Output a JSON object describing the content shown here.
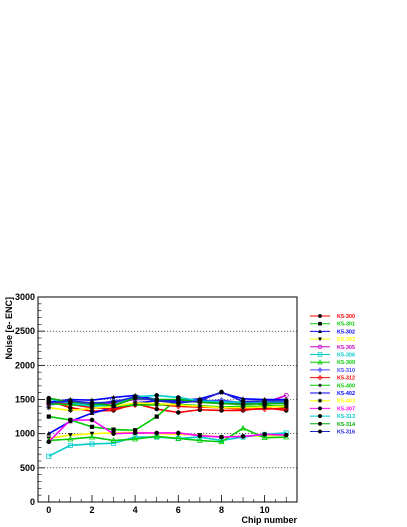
{
  "chart_data": {
    "type": "line",
    "xlabel": "Chip number",
    "ylabel": "Noise [e- ENC]",
    "xlim": [
      -0.5,
      11.5
    ],
    "ylim": [
      0,
      3000
    ],
    "xticks": [
      0,
      2,
      4,
      6,
      8,
      10
    ],
    "yticks": [
      0,
      500,
      1000,
      1500,
      2000,
      2500,
      3000
    ],
    "grid": "horizontal-dotted",
    "legend_position": "right",
    "x": [
      0,
      1,
      2,
      3,
      4,
      5,
      6,
      7,
      8,
      9,
      10,
      11
    ],
    "series": [
      {
        "name": "K5-300",
        "color": "#ff0000",
        "marker": "circle-filled",
        "values": [
          1480,
          1380,
          1330,
          1340,
          1440,
          1360,
          1310,
          1350,
          1340,
          1340,
          1380,
          1340
        ]
      },
      {
        "name": "K5-301",
        "color": "#00cc00",
        "marker": "square-filled",
        "values": [
          1250,
          1200,
          1100,
          1060,
          1050,
          1250,
          1520,
          1470,
          1440,
          1470,
          1420,
          1380
        ]
      },
      {
        "name": "K5-302",
        "color": "#0000ff",
        "marker": "triangle-filled",
        "values": [
          1000,
          1180,
          1300,
          1380,
          1450,
          1480,
          1460,
          1500,
          1450,
          1450,
          1440,
          1450
        ]
      },
      {
        "name": "K5-303",
        "color": "#ffff00",
        "marker": "triangle-down-filled",
        "values": [
          930,
          980,
          1000,
          1010,
          1020,
          1000,
          990,
          980,
          950,
          960,
          970,
          980
        ]
      },
      {
        "name": "K5-305",
        "color": "#cc00cc",
        "marker": "circle-open",
        "values": [
          1440,
          1450,
          1430,
          1450,
          1500,
          1500,
          1480,
          1460,
          1450,
          1450,
          1450,
          1560
        ]
      },
      {
        "name": "K5-306",
        "color": "#00cccc",
        "marker": "square-open",
        "values": [
          670,
          830,
          850,
          860,
          950,
          950,
          930,
          950,
          900,
          950,
          990,
          1010
        ]
      },
      {
        "name": "K5-309",
        "color": "#00cc00",
        "marker": "triangle-open",
        "values": [
          900,
          920,
          950,
          900,
          920,
          960,
          930,
          900,
          880,
          1080,
          940,
          950
        ]
      },
      {
        "name": "K5-310",
        "color": "#4444ff",
        "marker": "diamond-open",
        "values": [
          1420,
          1460,
          1420,
          1480,
          1510,
          1500,
          1480,
          1470,
          1490,
          1450,
          1460,
          1460
        ]
      },
      {
        "name": "K5-312",
        "color": "#ff0000",
        "marker": "diamond-open",
        "values": [
          1440,
          1430,
          1380,
          1360,
          1420,
          1430,
          1400,
          1390,
          1380,
          1360,
          1360,
          1370
        ]
      },
      {
        "name": "K5-400",
        "color": "#00cc00",
        "marker": "star",
        "values": [
          1440,
          1420,
          1420,
          1400,
          1420,
          1420,
          1430,
          1410,
          1390,
          1400,
          1400,
          1410
        ]
      },
      {
        "name": "K5-402",
        "color": "#0000ff",
        "marker": "star",
        "values": [
          1460,
          1500,
          1490,
          1530,
          1560,
          1500,
          1480,
          1510,
          1600,
          1510,
          1500,
          1500
        ]
      },
      {
        "name": "K5-403",
        "color": "#ffff00",
        "marker": "star-asterisk",
        "values": [
          1380,
          1340,
          1370,
          1400,
          1450,
          1440,
          1420,
          1400,
          1380,
          1380,
          1390,
          1400
        ]
      },
      {
        "name": "K5-307",
        "color": "#ff00ff",
        "marker": "circle-filled",
        "values": [
          880,
          1200,
          1200,
          1000,
          1010,
          1010,
          1010,
          970,
          950,
          960,
          990,
          980
        ]
      },
      {
        "name": "K5-313",
        "color": "#00cccc",
        "marker": "circle-filled",
        "values": [
          1510,
          1450,
          1400,
          1420,
          1540,
          1560,
          1530,
          1480,
          1460,
          1460,
          1470,
          1470
        ]
      },
      {
        "name": "K5-314",
        "color": "#00aa00",
        "marker": "circle-filled",
        "values": [
          1520,
          1460,
          1450,
          1410,
          1520,
          1500,
          1500,
          1460,
          1440,
          1430,
          1440,
          1440
        ]
      },
      {
        "name": "K5-316",
        "color": "#2222cc",
        "marker": "circle-filled",
        "values": [
          1450,
          1480,
          1450,
          1460,
          1540,
          1480,
          1450,
          1480,
          1610,
          1470,
          1480,
          1480
        ]
      }
    ]
  }
}
